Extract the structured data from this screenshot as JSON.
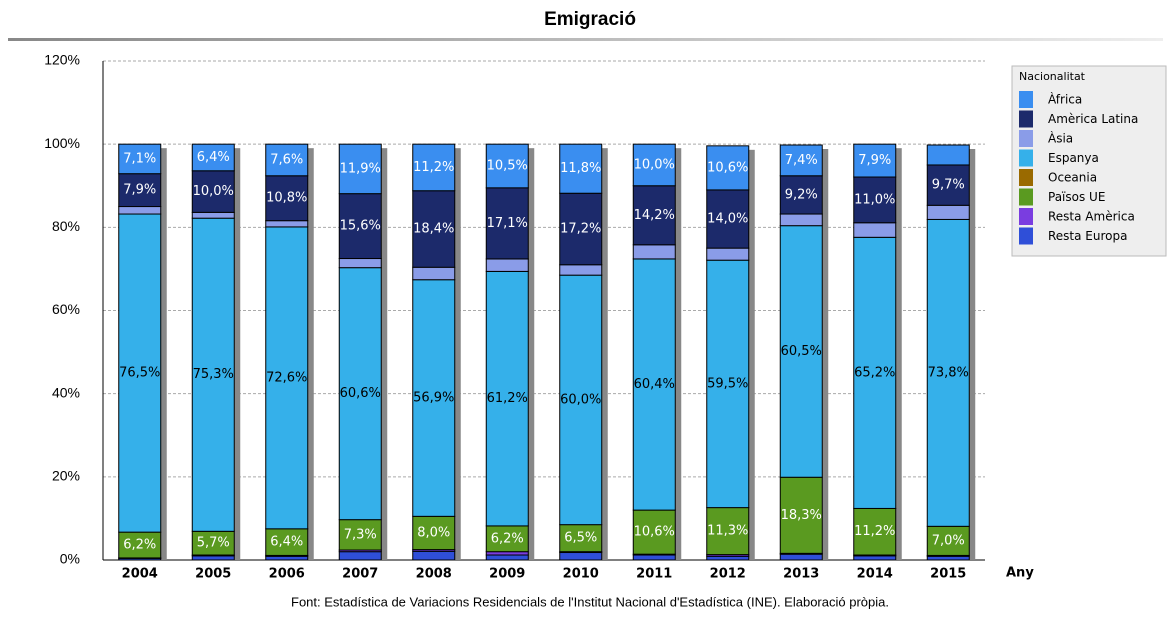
{
  "chart_data": {
    "type": "stacked_bar",
    "title": "Emigració",
    "x_label": "Any",
    "legend_title": "Nacionalitat",
    "legend": "right",
    "grid": true,
    "source": "Font: Estadística de Variacions Residencials de l'Institut Nacional d'Estadística (INE). Elaboració pròpia.",
    "categories": [
      "2004",
      "2005",
      "2006",
      "2007",
      "2008",
      "2009",
      "2010",
      "2011",
      "2012",
      "2013",
      "2014",
      "2015"
    ],
    "ylim": [
      0,
      120
    ],
    "yticks": [
      {
        "value": 0,
        "label": "0%"
      },
      {
        "value": 20,
        "label": "20%"
      },
      {
        "value": 40,
        "label": "40%"
      },
      {
        "value": 60,
        "label": "60%"
      },
      {
        "value": 80,
        "label": "80%"
      },
      {
        "value": 100,
        "label": "100%"
      },
      {
        "value": 120,
        "label": "120%"
      }
    ],
    "series": [
      {
        "name": "Resta Europa",
        "color": "#2f4fd8",
        "label_color": "#ffffff",
        "values": [
          0.4,
          1.0,
          0.9,
          2.0,
          2.1,
          1.2,
          1.8,
          1.2,
          0.9,
          1.4,
          1.0,
          0.9
        ],
        "value_labels": [
          null,
          null,
          null,
          null,
          null,
          null,
          null,
          null,
          null,
          null,
          null,
          null
        ]
      },
      {
        "name": "Resta Amèrica",
        "color": "#7a3de0",
        "label_color": "#ffffff",
        "values": [
          0.1,
          0.2,
          0.2,
          0.4,
          0.4,
          0.8,
          0.2,
          0.2,
          0.4,
          0.2,
          0.2,
          0.2
        ],
        "value_labels": [
          null,
          null,
          null,
          null,
          null,
          null,
          null,
          null,
          null,
          null,
          null,
          null
        ]
      },
      {
        "name": "Països UE",
        "color": "#5a9a20",
        "label_color": "#ffffff",
        "values": [
          6.2,
          5.7,
          6.4,
          7.3,
          8.0,
          6.2,
          6.5,
          10.6,
          11.3,
          18.3,
          11.2,
          7.0
        ],
        "value_labels": [
          "6,2%",
          "5,7%",
          "6,4%",
          "7,3%",
          "8,0%",
          "6,2%",
          "6,5%",
          "10,6%",
          "11,3%",
          "18,3%",
          "11,2%",
          "7,0%"
        ]
      },
      {
        "name": "Oceania",
        "color": "#9a6a00",
        "label_color": "#ffffff",
        "values": [
          0,
          0,
          0,
          0,
          0,
          0,
          0,
          0,
          0,
          0,
          0,
          0
        ],
        "value_labels": [
          null,
          null,
          null,
          null,
          null,
          null,
          null,
          null,
          null,
          null,
          null,
          null
        ]
      },
      {
        "name": "Espanya",
        "color": "#35b0ea",
        "label_color": "#000000",
        "values": [
          76.5,
          75.3,
          72.6,
          60.6,
          56.9,
          61.2,
          60.0,
          60.4,
          59.5,
          60.5,
          65.2,
          73.8
        ],
        "value_labels": [
          "76,5%",
          "75,3%",
          "72,6%",
          "60,6%",
          "56,9%",
          "61,2%",
          "60,0%",
          "60,4%",
          "59,5%",
          "60,5%",
          "65,2%",
          "73,8%"
        ]
      },
      {
        "name": "Àsia",
        "color": "#8a9ce8",
        "label_color": "#ffffff",
        "values": [
          1.8,
          1.4,
          1.5,
          2.2,
          3.0,
          3.0,
          2.5,
          3.4,
          2.9,
          2.8,
          3.5,
          3.4
        ],
        "value_labels": [
          null,
          null,
          null,
          null,
          null,
          null,
          null,
          null,
          null,
          null,
          null,
          null
        ]
      },
      {
        "name": "Amèrica Latina",
        "color": "#1c2a6b",
        "label_color": "#ffffff",
        "values": [
          7.9,
          10.0,
          10.8,
          15.6,
          18.4,
          17.1,
          17.2,
          14.2,
          14.0,
          9.2,
          11.0,
          9.7
        ],
        "value_labels": [
          "7,9%",
          "10,0%",
          "10,8%",
          "15,6%",
          "18,4%",
          "17,1%",
          "17,2%",
          "14,2%",
          "14,0%",
          "9,2%",
          "11,0%",
          "9,7%"
        ]
      },
      {
        "name": "Àfrica",
        "color": "#3a8ef0",
        "label_color": "#ffffff",
        "values": [
          7.1,
          6.4,
          7.6,
          11.9,
          11.2,
          10.5,
          11.8,
          10.0,
          10.6,
          7.4,
          7.9,
          4.8
        ],
        "value_labels": [
          "7,1%",
          "6,4%",
          "7,6%",
          "11,9%",
          "11,2%",
          "10,5%",
          "11,8%",
          "10,0%",
          "10,6%",
          "7,4%",
          "7,9%",
          null
        ]
      }
    ]
  }
}
